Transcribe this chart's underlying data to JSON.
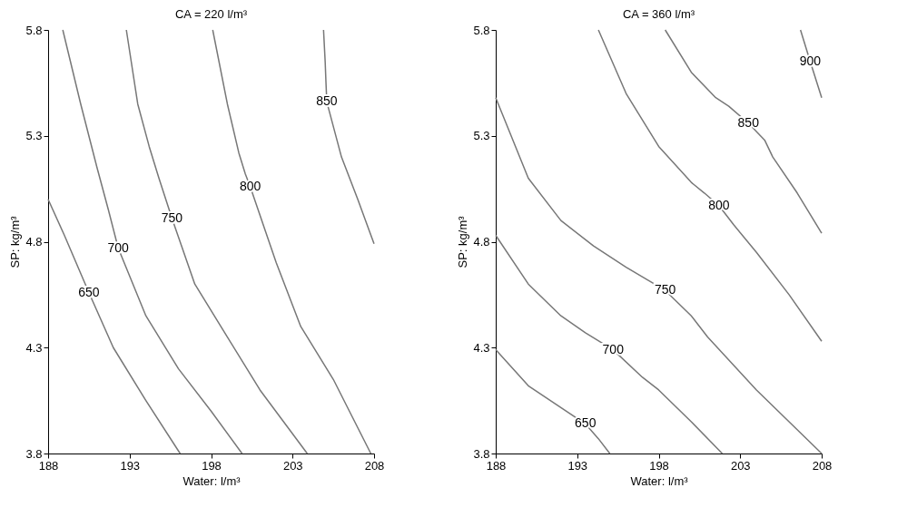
{
  "chart_data": [
    {
      "type": "line",
      "title": "CA = 220 l/m³",
      "xlabel": "Water: l/m³",
      "ylabel": "SP: kg/m³",
      "xlim": [
        188,
        208
      ],
      "ylim": [
        3.8,
        5.8
      ],
      "xticks": [
        188,
        193,
        198,
        203,
        208
      ],
      "yticks": [
        3.8,
        4.3,
        4.8,
        5.3,
        5.8
      ],
      "grid": false,
      "legend": false,
      "series": [
        {
          "name": "650",
          "color": "#777777",
          "x": [
            188,
            189,
            190,
            190.5,
            192,
            194,
            196.1
          ],
          "values": [
            5.0,
            4.83,
            4.65,
            4.56,
            4.3,
            4.05,
            3.8
          ]
        },
        {
          "name": "700",
          "color": "#777777",
          "x": [
            188.9,
            190,
            191,
            191.7,
            192.3,
            194,
            196,
            198,
            199.9
          ],
          "values": [
            5.8,
            5.45,
            5.15,
            4.95,
            4.77,
            4.45,
            4.2,
            4.0,
            3.8
          ]
        },
        {
          "name": "750",
          "color": "#777777",
          "x": [
            192.8,
            193.5,
            194.2,
            194.8,
            195.6,
            197,
            199,
            201,
            203.9
          ],
          "values": [
            5.8,
            5.45,
            5.25,
            5.1,
            4.91,
            4.6,
            4.35,
            4.1,
            3.8
          ]
        },
        {
          "name": "800",
          "color": "#777777",
          "x": [
            198.1,
            199,
            199.7,
            200.1,
            200.4,
            202,
            203.5,
            205.5,
            207.8
          ],
          "values": [
            5.8,
            5.45,
            5.22,
            5.12,
            5.06,
            4.7,
            4.4,
            4.15,
            3.8
          ]
        },
        {
          "name": "850",
          "color": "#777777",
          "x": [
            204.9,
            205,
            205.05,
            205.1,
            206,
            207,
            208
          ],
          "values": [
            5.8,
            5.65,
            5.55,
            5.46,
            5.2,
            5.0,
            4.79
          ]
        }
      ]
    },
    {
      "type": "line",
      "title": "CA = 360 l/m³",
      "xlabel": "Water: l/m³",
      "ylabel": "SP: kg/m³",
      "xlim": [
        188,
        208
      ],
      "ylim": [
        3.8,
        5.8
      ],
      "xticks": [
        188,
        193,
        198,
        203,
        208
      ],
      "yticks": [
        3.8,
        4.3,
        4.8,
        5.3,
        5.8
      ],
      "grid": false,
      "legend": false,
      "series": [
        {
          "name": "650",
          "color": "#777777",
          "x": [
            188,
            190,
            193.5,
            194.3,
            195
          ],
          "values": [
            4.29,
            4.12,
            3.94,
            3.87,
            3.8
          ]
        },
        {
          "name": "700",
          "color": "#777777",
          "x": [
            188,
            190,
            192,
            193.5,
            195.2,
            197,
            198,
            200,
            201.9
          ],
          "values": [
            4.83,
            4.6,
            4.45,
            4.37,
            4.29,
            4.16,
            4.1,
            3.95,
            3.8
          ]
        },
        {
          "name": "750",
          "color": "#777777",
          "x": [
            188,
            190,
            192,
            194,
            196,
            198.4,
            200,
            201,
            204,
            206,
            208
          ],
          "values": [
            5.48,
            5.1,
            4.9,
            4.78,
            4.68,
            4.57,
            4.45,
            4.35,
            4.1,
            3.95,
            3.8
          ]
        },
        {
          "name": "800",
          "color": "#777777",
          "x": [
            194.3,
            196,
            198,
            200,
            200.8,
            201.7,
            202.6,
            204,
            206,
            208
          ],
          "values": [
            5.8,
            5.5,
            5.25,
            5.08,
            5.03,
            4.97,
            4.88,
            4.75,
            4.55,
            4.33
          ]
        },
        {
          "name": "850",
          "color": "#777777",
          "x": [
            198.4,
            200,
            201.5,
            202.3,
            203.5,
            204.5,
            205,
            206.5,
            208
          ],
          "values": [
            5.8,
            5.6,
            5.48,
            5.44,
            5.36,
            5.28,
            5.2,
            5.03,
            4.84
          ]
        },
        {
          "name": "900",
          "color": "#777777",
          "x": [
            206.7,
            207.3,
            208
          ],
          "values": [
            5.8,
            5.65,
            5.48
          ]
        }
      ]
    }
  ]
}
